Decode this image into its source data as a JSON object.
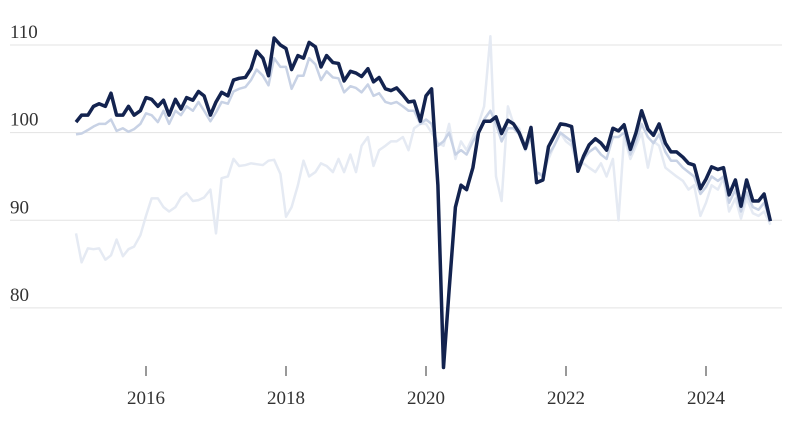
{
  "chart_data": {
    "type": "line",
    "x": [
      2015,
      2015.08,
      2015.17,
      2015.25,
      2015.33,
      2015.42,
      2015.5,
      2015.58,
      2015.67,
      2015.75,
      2015.83,
      2015.92,
      2016,
      2016.08,
      2016.17,
      2016.25,
      2016.33,
      2016.42,
      2016.5,
      2016.58,
      2016.67,
      2016.75,
      2016.83,
      2016.92,
      2017,
      2017.08,
      2017.17,
      2017.25,
      2017.33,
      2017.42,
      2017.5,
      2017.58,
      2017.67,
      2017.75,
      2017.83,
      2017.92,
      2018,
      2018.08,
      2018.17,
      2018.25,
      2018.33,
      2018.42,
      2018.5,
      2018.58,
      2018.67,
      2018.75,
      2018.83,
      2018.92,
      2019,
      2019.08,
      2019.17,
      2019.25,
      2019.33,
      2019.42,
      2019.5,
      2019.58,
      2019.67,
      2019.75,
      2019.83,
      2019.92,
      2020,
      2020.08,
      2020.17,
      2020.25,
      2020.33,
      2020.42,
      2020.5,
      2020.58,
      2020.67,
      2020.75,
      2020.83,
      2020.92,
      2021,
      2021.08,
      2021.17,
      2021.25,
      2021.33,
      2021.42,
      2021.5,
      2021.58,
      2021.67,
      2021.75,
      2021.83,
      2021.92,
      2022,
      2022.08,
      2022.17,
      2022.25,
      2022.33,
      2022.42,
      2022.5,
      2022.58,
      2022.67,
      2022.75,
      2022.83,
      2022.92,
      2023,
      2023.08,
      2023.17,
      2023.25,
      2023.33,
      2023.42,
      2023.5,
      2023.58,
      2023.67,
      2023.75,
      2023.83,
      2023.92,
      2024,
      2024.08,
      2024.17,
      2024.25,
      2024.33,
      2024.42,
      2024.5,
      2024.58,
      2024.67,
      2024.75,
      2024.83,
      2024.92
    ],
    "series": [
      {
        "color": "#e5eaf3",
        "values": [
          88.5,
          85.2,
          86.8,
          86.7,
          86.8,
          85.5,
          86,
          87.8,
          85.9,
          86.7,
          87,
          88.3,
          90.5,
          92.5,
          92.5,
          91.5,
          91,
          91.5,
          92.6,
          93.1,
          92.2,
          92.3,
          92.6,
          93.5,
          88.5,
          94.8,
          95,
          97,
          96.2,
          96.3,
          96.5,
          96.4,
          96.3,
          96.8,
          96.9,
          95.3,
          90.4,
          91.5,
          94,
          96.8,
          95,
          95.5,
          96.5,
          96.2,
          95.5,
          97,
          95.5,
          97.5,
          95.5,
          98.5,
          99.5,
          96.2,
          98,
          98.5,
          99,
          99,
          99.5,
          98,
          100.5,
          101,
          101,
          100,
          98.8,
          98.5,
          101,
          97,
          99,
          98,
          99.5,
          101,
          103,
          111,
          95,
          92.2,
          103,
          101,
          100.5,
          98.5,
          100,
          95.5,
          95.2,
          97,
          98.5,
          100,
          99,
          98.5,
          96,
          96.5,
          96,
          95.5,
          96.5,
          95,
          97,
          90,
          99.5,
          97,
          98.5,
          100,
          96,
          99,
          98.5,
          96,
          95.5,
          95,
          94.5,
          93.5,
          94,
          90.5,
          92,
          94,
          93.5,
          94.8,
          91,
          92.5,
          90.2,
          92.5,
          90.8,
          90.5,
          91,
          89.5
        ]
      },
      {
        "color": "#c8d2e5",
        "values": [
          99.8,
          99.9,
          100.3,
          100.7,
          101,
          101,
          101.5,
          100.2,
          100.5,
          100.1,
          100.4,
          101,
          102.2,
          102,
          101.2,
          102.5,
          101,
          102.5,
          102,
          103,
          102.5,
          103.5,
          102.5,
          101.3,
          102.3,
          103.5,
          103.3,
          104.7,
          105,
          105.2,
          106,
          107.2,
          106.5,
          105.4,
          108.5,
          107.5,
          107.5,
          105,
          106.5,
          106.5,
          108.5,
          107.8,
          106,
          107,
          106.3,
          106.2,
          104.6,
          105.3,
          105.1,
          104.6,
          105.5,
          104.2,
          104.5,
          103.5,
          103.3,
          103.5,
          103,
          102.5,
          102.5,
          101,
          101.5,
          101,
          98.5,
          99,
          100,
          97.5,
          98,
          97.5,
          99,
          100,
          101.5,
          102.5,
          101,
          99,
          100.5,
          100.5,
          99.8,
          98,
          99.5,
          95.5,
          95,
          97.5,
          98.5,
          100,
          99.5,
          99,
          96.5,
          97,
          97.8,
          98.3,
          97.5,
          97,
          99.5,
          99.5,
          100,
          97.5,
          99,
          101,
          99.5,
          98.8,
          99.8,
          97.8,
          96.8,
          96.8,
          96,
          95.5,
          95,
          93,
          93.8,
          95,
          94.5,
          95,
          92,
          93.5,
          91,
          93.2,
          91.5,
          91.2,
          92,
          90
        ]
      },
      {
        "color": "#13234f",
        "values": [
          101.2,
          102,
          102,
          103,
          103.3,
          103,
          104.5,
          102,
          102,
          103,
          102,
          102.5,
          104,
          103.8,
          103,
          103.7,
          102,
          103.8,
          102.7,
          104,
          103.7,
          104.7,
          104.2,
          102,
          103.5,
          104.6,
          104.2,
          106,
          106.2,
          106.3,
          107.3,
          109.3,
          108.5,
          106.5,
          110.8,
          110,
          109.6,
          107.2,
          108.8,
          108.5,
          110.3,
          109.8,
          107.5,
          108.8,
          108,
          107.9,
          105.9,
          107,
          106.8,
          106.4,
          107.3,
          105.8,
          106.3,
          105,
          104.8,
          105.1,
          104.3,
          103.5,
          103.6,
          101.3,
          104.2,
          105,
          94,
          73.2,
          82,
          91.5,
          94,
          93.5,
          96,
          100,
          101.3,
          101.3,
          101.8,
          99.9,
          101.4,
          101,
          100,
          98.2,
          100.6,
          94.3,
          94.6,
          98.4,
          99.6,
          101,
          100.9,
          100.7,
          95.6,
          97.3,
          98.6,
          99.3,
          98.8,
          98,
          100.5,
          100.2,
          100.9,
          98.1,
          100,
          102.5,
          100.4,
          99.7,
          101,
          98.8,
          97.8,
          97.8,
          97.2,
          96.5,
          96.3,
          93.6,
          94.7,
          96.1,
          95.8,
          96,
          92.9,
          94.6,
          91.6,
          94.6,
          92.2,
          92.2,
          93,
          89.9
        ]
      }
    ],
    "xlim": [
      2014.4,
      2025.2
    ],
    "xticks": [
      2016,
      2018,
      2020,
      2022,
      2024
    ],
    "ylim": [
      72,
      112
    ],
    "yticks": [
      80,
      90,
      100,
      110
    ],
    "grid": true
  }
}
